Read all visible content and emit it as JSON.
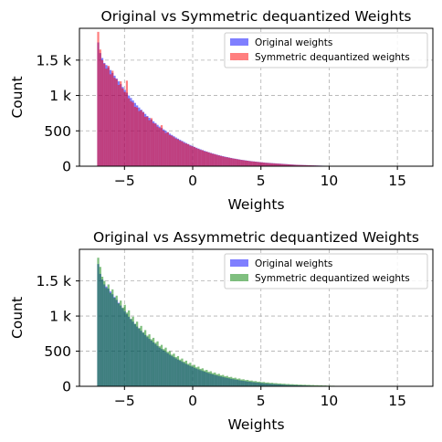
{
  "chart_data": [
    {
      "type": "histogram",
      "title": "Original vs Symmetric dequantized Weights",
      "xlabel": "Weights",
      "ylabel": "Count",
      "xlim": [
        -8.3,
        17.6
      ],
      "ylim": [
        0,
        1950
      ],
      "xticks": [
        -5,
        0,
        5,
        10,
        15
      ],
      "xtick_labels": [
        "−5",
        "0",
        "5",
        "10",
        "15"
      ],
      "yticks": [
        0,
        500,
        1000,
        1500
      ],
      "ytick_labels": [
        "0",
        "500",
        "1 k",
        "1.5 k"
      ],
      "grid": true,
      "legend_position": "top-right",
      "bin_start": -7.0,
      "bin_width": 0.15,
      "series": [
        {
          "name": "Original weights",
          "color": "#0000ff",
          "opacity": 0.5,
          "values": [
            1750,
            1600,
            1530,
            1460,
            1430,
            1400,
            1360,
            1320,
            1280,
            1240,
            1200,
            1160,
            1120,
            1080,
            1040,
            1000,
            965,
            930,
            895,
            860,
            830,
            800,
            770,
            740,
            710,
            685,
            660,
            635,
            610,
            585,
            560,
            540,
            520,
            500,
            480,
            460,
            442,
            424,
            406,
            390,
            374,
            358,
            343,
            328,
            314,
            300,
            287,
            274,
            262,
            250,
            239,
            228,
            218,
            208,
            198,
            189,
            180,
            172,
            164,
            156,
            149,
            142,
            135,
            129,
            123,
            117,
            111,
            106,
            101,
            96,
            91,
            87,
            83,
            79,
            75,
            71,
            68,
            65,
            62,
            59,
            56,
            53,
            50,
            48,
            46,
            44,
            42,
            40,
            38,
            36,
            34,
            32,
            30,
            28,
            26,
            24,
            22,
            20,
            19,
            18,
            17,
            16,
            15,
            14,
            13,
            12,
            11,
            10,
            9,
            8,
            7,
            6,
            5,
            5,
            4,
            4,
            3,
            3,
            2,
            2
          ]
        },
        {
          "name": "Symmetric dequantized weights",
          "color": "#ff0000",
          "opacity": 0.5,
          "values": [
            1900,
            1650,
            1500,
            1450,
            1380,
            1420,
            1300,
            1350,
            1250,
            1230,
            1150,
            1200,
            1100,
            1050,
            1210,
            960,
            920,
            900,
            840,
            830,
            780,
            790,
            760,
            700,
            700,
            650,
            680,
            610,
            600,
            560,
            540,
            580,
            500,
            470,
            480,
            440,
            430,
            410,
            390,
            380,
            360,
            350,
            330,
            320,
            310,
            290,
            280,
            270,
            255,
            245,
            230,
            225,
            210,
            205,
            195,
            185,
            175,
            170,
            160,
            152,
            145,
            138,
            130,
            126,
            120,
            114,
            108,
            104,
            98,
            94,
            88,
            85,
            80,
            77,
            72,
            69,
            66,
            63,
            60,
            57,
            54,
            51,
            48,
            46,
            44,
            42,
            40,
            38,
            36,
            34,
            32,
            30,
            28,
            26,
            24,
            22,
            20,
            19,
            18,
            17,
            16,
            15,
            14,
            13,
            12,
            11,
            10,
            9,
            8,
            7,
            6,
            5,
            5,
            4,
            4,
            3,
            3,
            2,
            2,
            2
          ]
        }
      ]
    },
    {
      "type": "histogram",
      "title": "Original vs Assymmetric dequantized Weights",
      "xlabel": "Weights",
      "ylabel": "Count",
      "xlim": [
        -8.3,
        17.6
      ],
      "ylim": [
        0,
        1950
      ],
      "xticks": [
        -5,
        0,
        5,
        10,
        15
      ],
      "xtick_labels": [
        "−5",
        "0",
        "5",
        "10",
        "15"
      ],
      "yticks": [
        0,
        500,
        1000,
        1500
      ],
      "ytick_labels": [
        "0",
        "500",
        "1 k",
        "1.5 k"
      ],
      "grid": true,
      "legend_position": "top-right",
      "bin_start": -7.0,
      "bin_width": 0.15,
      "series": [
        {
          "name": "Original weights",
          "color": "#0000ff",
          "opacity": 0.5,
          "values": [
            1740,
            1600,
            1520,
            1450,
            1420,
            1390,
            1350,
            1310,
            1270,
            1230,
            1190,
            1150,
            1110,
            1070,
            1030,
            990,
            955,
            920,
            885,
            850,
            820,
            790,
            760,
            730,
            700,
            675,
            650,
            625,
            600,
            575,
            550,
            530,
            510,
            490,
            470,
            450,
            432,
            414,
            396,
            380,
            364,
            348,
            333,
            318,
            304,
            290,
            277,
            264,
            252,
            240,
            229,
            218,
            208,
            198,
            188,
            179,
            170,
            162,
            154,
            146,
            139,
            132,
            125,
            119,
            113,
            107,
            101,
            96,
            91,
            86,
            81,
            77,
            73,
            69,
            65,
            61,
            58,
            55,
            52,
            49,
            46,
            43,
            40,
            38,
            36,
            34,
            32,
            30,
            28,
            26,
            24,
            22,
            20,
            19,
            18,
            17,
            16,
            15,
            14,
            13,
            12,
            11,
            10,
            9,
            8,
            7,
            6,
            5,
            5,
            4,
            4,
            3,
            3,
            2,
            2,
            2
          ]
        },
        {
          "name": "Symmetric dequantized weights",
          "color": "#008000",
          "opacity": 0.5,
          "values": [
            1830,
            1700,
            1560,
            1500,
            1400,
            1450,
            1330,
            1380,
            1260,
            1290,
            1180,
            1220,
            1120,
            1160,
            1050,
            1080,
            960,
            990,
            890,
            920,
            830,
            860,
            770,
            800,
            720,
            740,
            670,
            690,
            620,
            640,
            570,
            590,
            530,
            550,
            490,
            500,
            450,
            465,
            415,
            430,
            380,
            395,
            350,
            365,
            320,
            335,
            295,
            305,
            270,
            280,
            248,
            256,
            226,
            234,
            206,
            214,
            188,
            196,
            172,
            178,
            156,
            162,
            142,
            148,
            130,
            134,
            118,
            122,
            107,
            111,
            97,
            100,
            88,
            91,
            80,
            82,
            72,
            74,
            65,
            67,
            59,
            61,
            53,
            55,
            48,
            50,
            44,
            45,
            40,
            41,
            36,
            37,
            32,
            33,
            29,
            30,
            26,
            27,
            23,
            24,
            21,
            22,
            19,
            20,
            17,
            18,
            15,
            16,
            13,
            14,
            11,
            12,
            9,
            10,
            8,
            8,
            6,
            6,
            5,
            5,
            4,
            4
          ]
        }
      ]
    }
  ]
}
